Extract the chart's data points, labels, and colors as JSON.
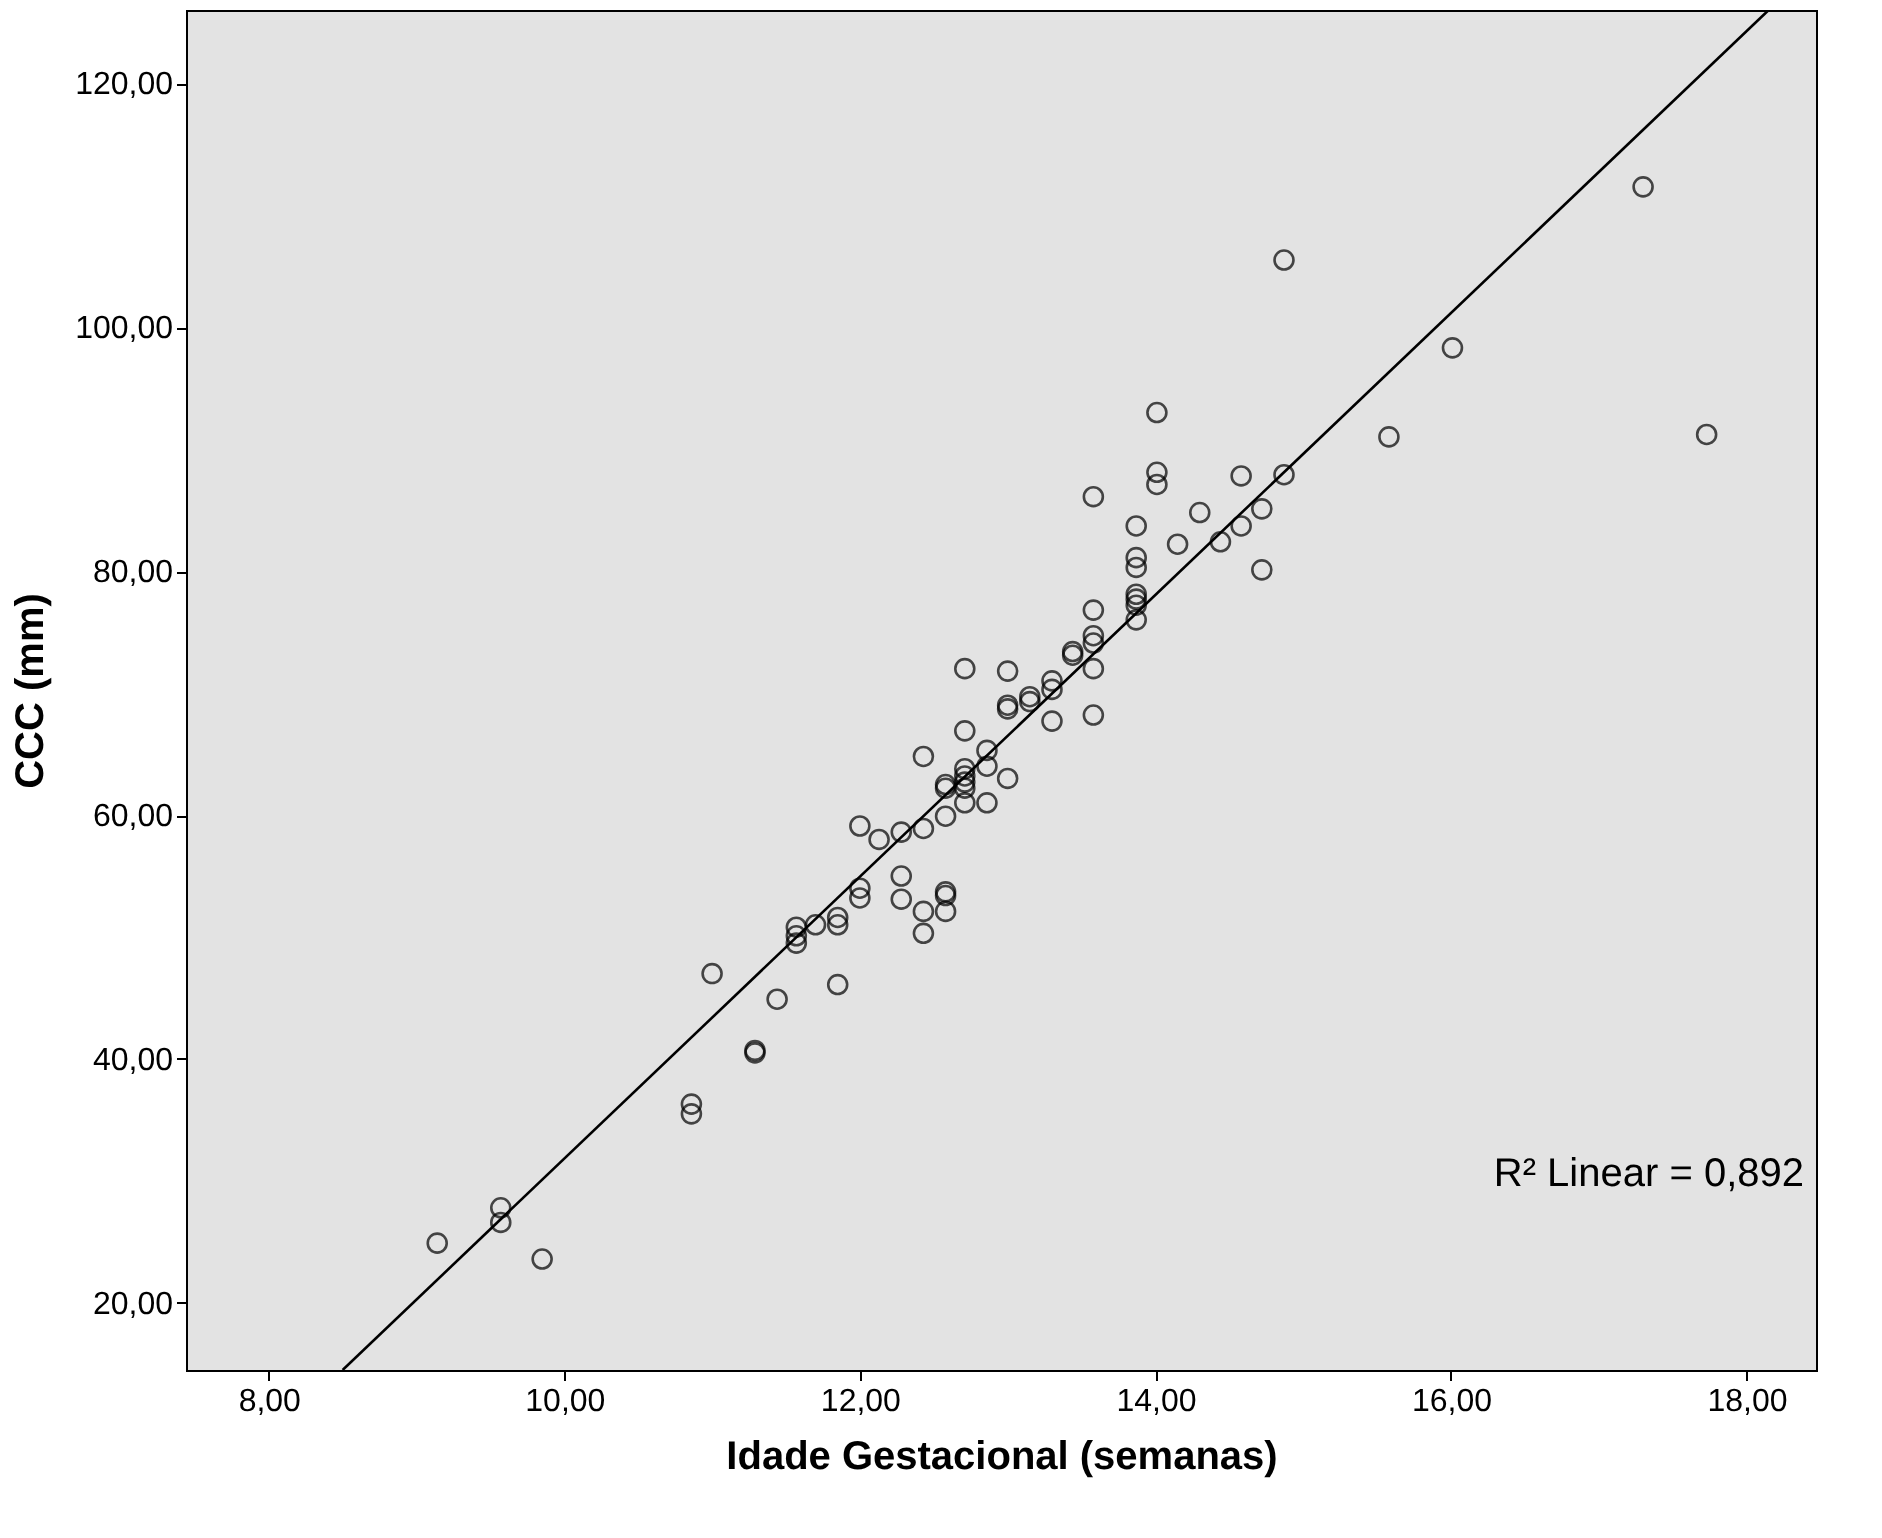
{
  "chart_data": {
    "type": "scatter",
    "xlabel": "Idade Gestacional (semanas)",
    "ylabel": "CCC (mm)",
    "xlim": [
      7.44,
      18.47
    ],
    "ylim": [
      14.5,
      126
    ],
    "xticks": [
      {
        "value": 8,
        "label": "8,00"
      },
      {
        "value": 10,
        "label": "10,00"
      },
      {
        "value": 12,
        "label": "12,00"
      },
      {
        "value": 14,
        "label": "14,00"
      },
      {
        "value": 16,
        "label": "16,00"
      },
      {
        "value": 18,
        "label": "18,00"
      }
    ],
    "yticks": [
      {
        "value": 20,
        "label": "20,00"
      },
      {
        "value": 40,
        "label": "40,00"
      },
      {
        "value": 60,
        "label": "60,00"
      },
      {
        "value": 80,
        "label": "80,00"
      },
      {
        "value": 100,
        "label": "100,00"
      },
      {
        "value": 120,
        "label": "120,00"
      }
    ],
    "grid": false,
    "marker": "circle",
    "annotations": [
      "R² Linear = 0,892"
    ],
    "series": [
      {
        "color": "#000000",
        "x": [
          9.14,
          9.57,
          9.57,
          9.85,
          10.86,
          10.86,
          11.0,
          11.29,
          11.29,
          11.44,
          11.57,
          11.57,
          11.57,
          11.7,
          11.85,
          11.85,
          11.85,
          12.0,
          12.0,
          12.0,
          12.13,
          12.28,
          12.28,
          12.28,
          12.43,
          12.43,
          12.43,
          12.43,
          12.58,
          12.58,
          12.58,
          12.58,
          12.58,
          12.58,
          12.71,
          12.71,
          12.71,
          12.71,
          12.71,
          12.71,
          12.71,
          12.86,
          12.86,
          12.86,
          13.0,
          13.0,
          13.0,
          13.0,
          13.15,
          13.15,
          13.3,
          13.3,
          13.3,
          13.44,
          13.44,
          13.58,
          13.58,
          13.58,
          13.58,
          13.58,
          13.58,
          13.87,
          13.87,
          13.87,
          13.87,
          13.87,
          13.87,
          13.87,
          14.01,
          14.01,
          14.01,
          14.15,
          14.3,
          14.44,
          14.58,
          14.58,
          14.72,
          14.72,
          14.87,
          14.87,
          15.58,
          16.01,
          17.3,
          17.73
        ],
        "values": [
          24.9,
          27.8,
          26.6,
          23.6,
          36.3,
          35.5,
          47.0,
          40.5,
          40.7,
          44.9,
          50.1,
          50.8,
          49.5,
          51.0,
          51.6,
          51.0,
          46.1,
          59.1,
          54.0,
          53.2,
          58.0,
          58.6,
          55.0,
          53.1,
          64.8,
          58.9,
          52.1,
          50.3,
          59.9,
          62.2,
          62.5,
          53.7,
          53.4,
          52.1,
          72.0,
          66.9,
          63.8,
          63.2,
          62.7,
          62.2,
          61.0,
          65.3,
          64.0,
          61.0,
          71.8,
          69.0,
          68.7,
          63.0,
          69.3,
          69.7,
          71.0,
          70.3,
          67.7,
          73.4,
          73.1,
          86.1,
          76.8,
          74.7,
          74.1,
          72.0,
          68.2,
          83.7,
          81.1,
          80.3,
          78.1,
          77.7,
          77.2,
          76.0,
          93.0,
          88.1,
          87.1,
          82.2,
          84.8,
          82.4,
          87.8,
          83.7,
          85.1,
          80.1,
          87.9,
          105.5,
          91.0,
          98.3,
          111.5,
          91.2
        ]
      },
      {
        "type": "line",
        "color": "#000000",
        "x": [
          8.5,
          18.15
        ],
        "values": [
          14.5,
          126
        ],
        "line_style": "solid",
        "marker": "none"
      }
    ]
  }
}
